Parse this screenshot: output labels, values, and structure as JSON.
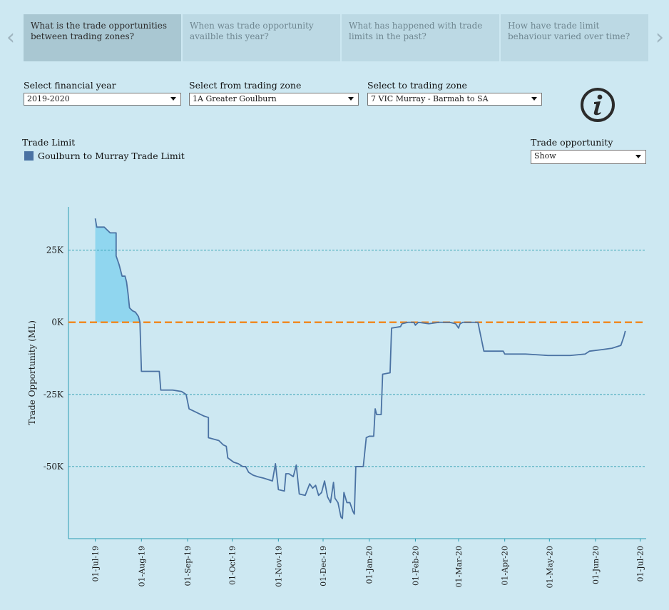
{
  "tabs": [
    {
      "label": "What is the trade opportunities between trading zones?",
      "active": true
    },
    {
      "label": "When was trade opportunity availble this year?",
      "active": false
    },
    {
      "label": "What has happened with trade limits in the past?",
      "active": false
    },
    {
      "label": "How have trade limit behaviour varied over time?",
      "active": false
    }
  ],
  "nav": {
    "prev_icon": "chevron-left-icon",
    "next_icon": "chevron-right-icon"
  },
  "filters": {
    "financial_year": {
      "label": "Select financial year",
      "value": "2019-2020"
    },
    "from_zone": {
      "label": "Select from trading zone",
      "value": "1A Greater Goulburn"
    },
    "to_zone": {
      "label": "Select to trading zone",
      "value": "7 VIC Murray - Barmah to SA"
    }
  },
  "legend": {
    "title": "Trade Limit",
    "items": [
      {
        "label": "Goulburn to Murray Trade Limit",
        "color": "#4a72a3"
      }
    ]
  },
  "trade_opportunity": {
    "label": "Trade opportunity",
    "value": "Show"
  },
  "info_icon": "info-icon",
  "chart_data": {
    "type": "line",
    "ylabel": "Trade Opportunity (ML)",
    "xlabel": "",
    "y_ticks": [
      {
        "value": 25000,
        "label": "25K"
      },
      {
        "value": 0,
        "label": "0K"
      },
      {
        "value": -25000,
        "label": "-25K"
      },
      {
        "value": -50000,
        "label": "-50K"
      }
    ],
    "ylim": [
      -75000,
      40000
    ],
    "x_ticks": [
      "01-Jul-19",
      "01-Aug-19",
      "01-Sep-19",
      "01-Oct-19",
      "01-Nov-19",
      "01-Dec-19",
      "01-Jan-20",
      "01-Feb-20",
      "01-Mar-20",
      "01-Apr-20",
      "01-May-20",
      "01-Jun-20",
      "01-Jul-20"
    ],
    "xlim": [
      "2019-06-13",
      "2020-07-05"
    ],
    "colors": {
      "line": "#4a72a3",
      "positive_fill": "#90d6ef",
      "zero_line": "#f08a24",
      "grid": "#3aa3b5"
    },
    "series": [
      {
        "name": "Goulburn to Murray Trade Limit",
        "points": [
          [
            "2019-07-01",
            36000
          ],
          [
            "2019-07-02",
            33000
          ],
          [
            "2019-07-07",
            33000
          ],
          [
            "2019-07-09",
            32000
          ],
          [
            "2019-07-11",
            31000
          ],
          [
            "2019-07-15",
            31000
          ],
          [
            "2019-07-15",
            23000
          ],
          [
            "2019-07-17",
            20000
          ],
          [
            "2019-07-19",
            16000
          ],
          [
            "2019-07-21",
            16000
          ],
          [
            "2019-07-22",
            14000
          ],
          [
            "2019-07-23",
            10000
          ],
          [
            "2019-07-24",
            5000
          ],
          [
            "2019-07-26",
            4000
          ],
          [
            "2019-07-28",
            3500
          ],
          [
            "2019-07-30",
            2000
          ],
          [
            "2019-07-31",
            0
          ],
          [
            "2019-08-01",
            -17000
          ],
          [
            "2019-08-10",
            -17000
          ],
          [
            "2019-08-13",
            -17000
          ],
          [
            "2019-08-14",
            -23500
          ],
          [
            "2019-08-22",
            -23500
          ],
          [
            "2019-08-28",
            -24000
          ],
          [
            "2019-08-31",
            -25000
          ],
          [
            "2019-09-02",
            -30000
          ],
          [
            "2019-09-06",
            -31000
          ],
          [
            "2019-09-12",
            -32500
          ],
          [
            "2019-09-15",
            -33000
          ],
          [
            "2019-09-15",
            -40000
          ],
          [
            "2019-09-22",
            -41000
          ],
          [
            "2019-09-25",
            -42500
          ],
          [
            "2019-09-27",
            -43000
          ],
          [
            "2019-09-28",
            -47000
          ],
          [
            "2019-10-02",
            -48500
          ],
          [
            "2019-10-05",
            -49000
          ],
          [
            "2019-10-08",
            -50000
          ],
          [
            "2019-10-10",
            -50000
          ],
          [
            "2019-10-12",
            -52000
          ],
          [
            "2019-10-15",
            -53000
          ],
          [
            "2019-10-18",
            -53500
          ],
          [
            "2019-10-22",
            -54000
          ],
          [
            "2019-10-28",
            -55000
          ],
          [
            "2019-10-30",
            -49000
          ],
          [
            "2019-11-01",
            -58000
          ],
          [
            "2019-11-05",
            -58500
          ],
          [
            "2019-11-06",
            -52500
          ],
          [
            "2019-11-08",
            -52500
          ],
          [
            "2019-11-11",
            -53500
          ],
          [
            "2019-11-13",
            -49500
          ],
          [
            "2019-11-15",
            -59500
          ],
          [
            "2019-11-19",
            -60000
          ],
          [
            "2019-11-22",
            -56000
          ],
          [
            "2019-11-24",
            -57500
          ],
          [
            "2019-11-26",
            -56500
          ],
          [
            "2019-11-28",
            -60000
          ],
          [
            "2019-11-30",
            -59000
          ],
          [
            "2019-12-02",
            -55000
          ],
          [
            "2019-12-04",
            -60500
          ],
          [
            "2019-12-06",
            -62500
          ],
          [
            "2019-12-08",
            -55500
          ],
          [
            "2019-12-09",
            -61000
          ],
          [
            "2019-12-11",
            -62500
          ],
          [
            "2019-12-13",
            -67500
          ],
          [
            "2019-12-14",
            -68000
          ],
          [
            "2019-12-15",
            -59000
          ],
          [
            "2019-12-17",
            -62500
          ],
          [
            "2019-12-19",
            -62500
          ],
          [
            "2019-12-21",
            -65500
          ],
          [
            "2019-12-22",
            -66500
          ],
          [
            "2019-12-23",
            -50000
          ],
          [
            "2019-12-28",
            -50000
          ],
          [
            "2019-12-30",
            -40000
          ],
          [
            "2020-01-01",
            -39500
          ],
          [
            "2020-01-04",
            -39500
          ],
          [
            "2020-01-05",
            -30000
          ],
          [
            "2020-01-06",
            -32000
          ],
          [
            "2020-01-09",
            -32000
          ],
          [
            "2020-01-10",
            -18000
          ],
          [
            "2020-01-15",
            -17500
          ],
          [
            "2020-01-16",
            -2000
          ],
          [
            "2020-01-22",
            -1500
          ],
          [
            "2020-01-23",
            -500
          ],
          [
            "2020-01-27",
            0
          ],
          [
            "2020-01-31",
            0
          ],
          [
            "2020-02-01",
            -1000
          ],
          [
            "2020-02-03",
            0
          ],
          [
            "2020-02-10",
            -500
          ],
          [
            "2020-02-17",
            0
          ],
          [
            "2020-02-24",
            0
          ],
          [
            "2020-02-28",
            -500
          ],
          [
            "2020-03-01",
            -2000
          ],
          [
            "2020-03-02",
            -500
          ],
          [
            "2020-03-04",
            0
          ],
          [
            "2020-03-14",
            0
          ],
          [
            "2020-03-16",
            -5000
          ],
          [
            "2020-03-18",
            -10000
          ],
          [
            "2020-03-25",
            -10000
          ],
          [
            "2020-03-31",
            -10000
          ],
          [
            "2020-04-01",
            -11000
          ],
          [
            "2020-04-15",
            -11000
          ],
          [
            "2020-04-30",
            -11500
          ],
          [
            "2020-05-15",
            -11500
          ],
          [
            "2020-05-25",
            -11000
          ],
          [
            "2020-05-28",
            -10000
          ],
          [
            "2020-06-05",
            -9500
          ],
          [
            "2020-06-12",
            -9000
          ],
          [
            "2020-06-18",
            -8000
          ],
          [
            "2020-06-20",
            -5000
          ],
          [
            "2020-06-21",
            -3000
          ]
        ]
      }
    ]
  }
}
